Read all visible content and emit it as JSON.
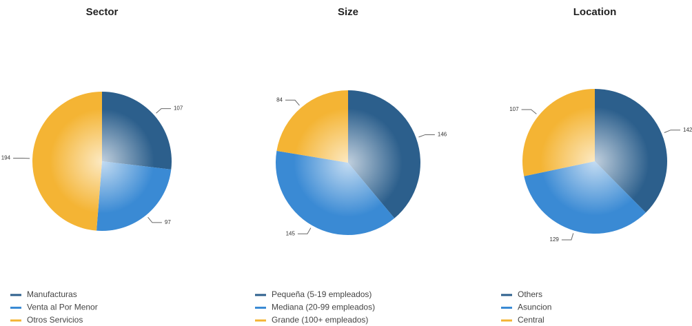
{
  "chart_data": [
    {
      "type": "pie",
      "title": "Sector",
      "categories": [
        "Manufacturas",
        "Venta al Por Menor",
        "Otros Servicios"
      ],
      "values": [
        107,
        97,
        194
      ],
      "colors": [
        "#2c5f8c",
        "#3a8ad4",
        "#f4b434"
      ]
    },
    {
      "type": "pie",
      "title": "Size",
      "categories": [
        "Pequeña (5-19 empleados)",
        "Mediana (20-99 empleados)",
        "Grande (100+ empleados)"
      ],
      "values": [
        146,
        145,
        84
      ],
      "colors": [
        "#2c5f8c",
        "#3a8ad4",
        "#f4b434"
      ]
    },
    {
      "type": "pie",
      "title": "Location",
      "categories": [
        "Others",
        "Asuncion",
        "Central"
      ],
      "values": [
        142,
        129,
        107
      ],
      "colors": [
        "#2c5f8c",
        "#3a8ad4",
        "#f4b434"
      ]
    }
  ]
}
